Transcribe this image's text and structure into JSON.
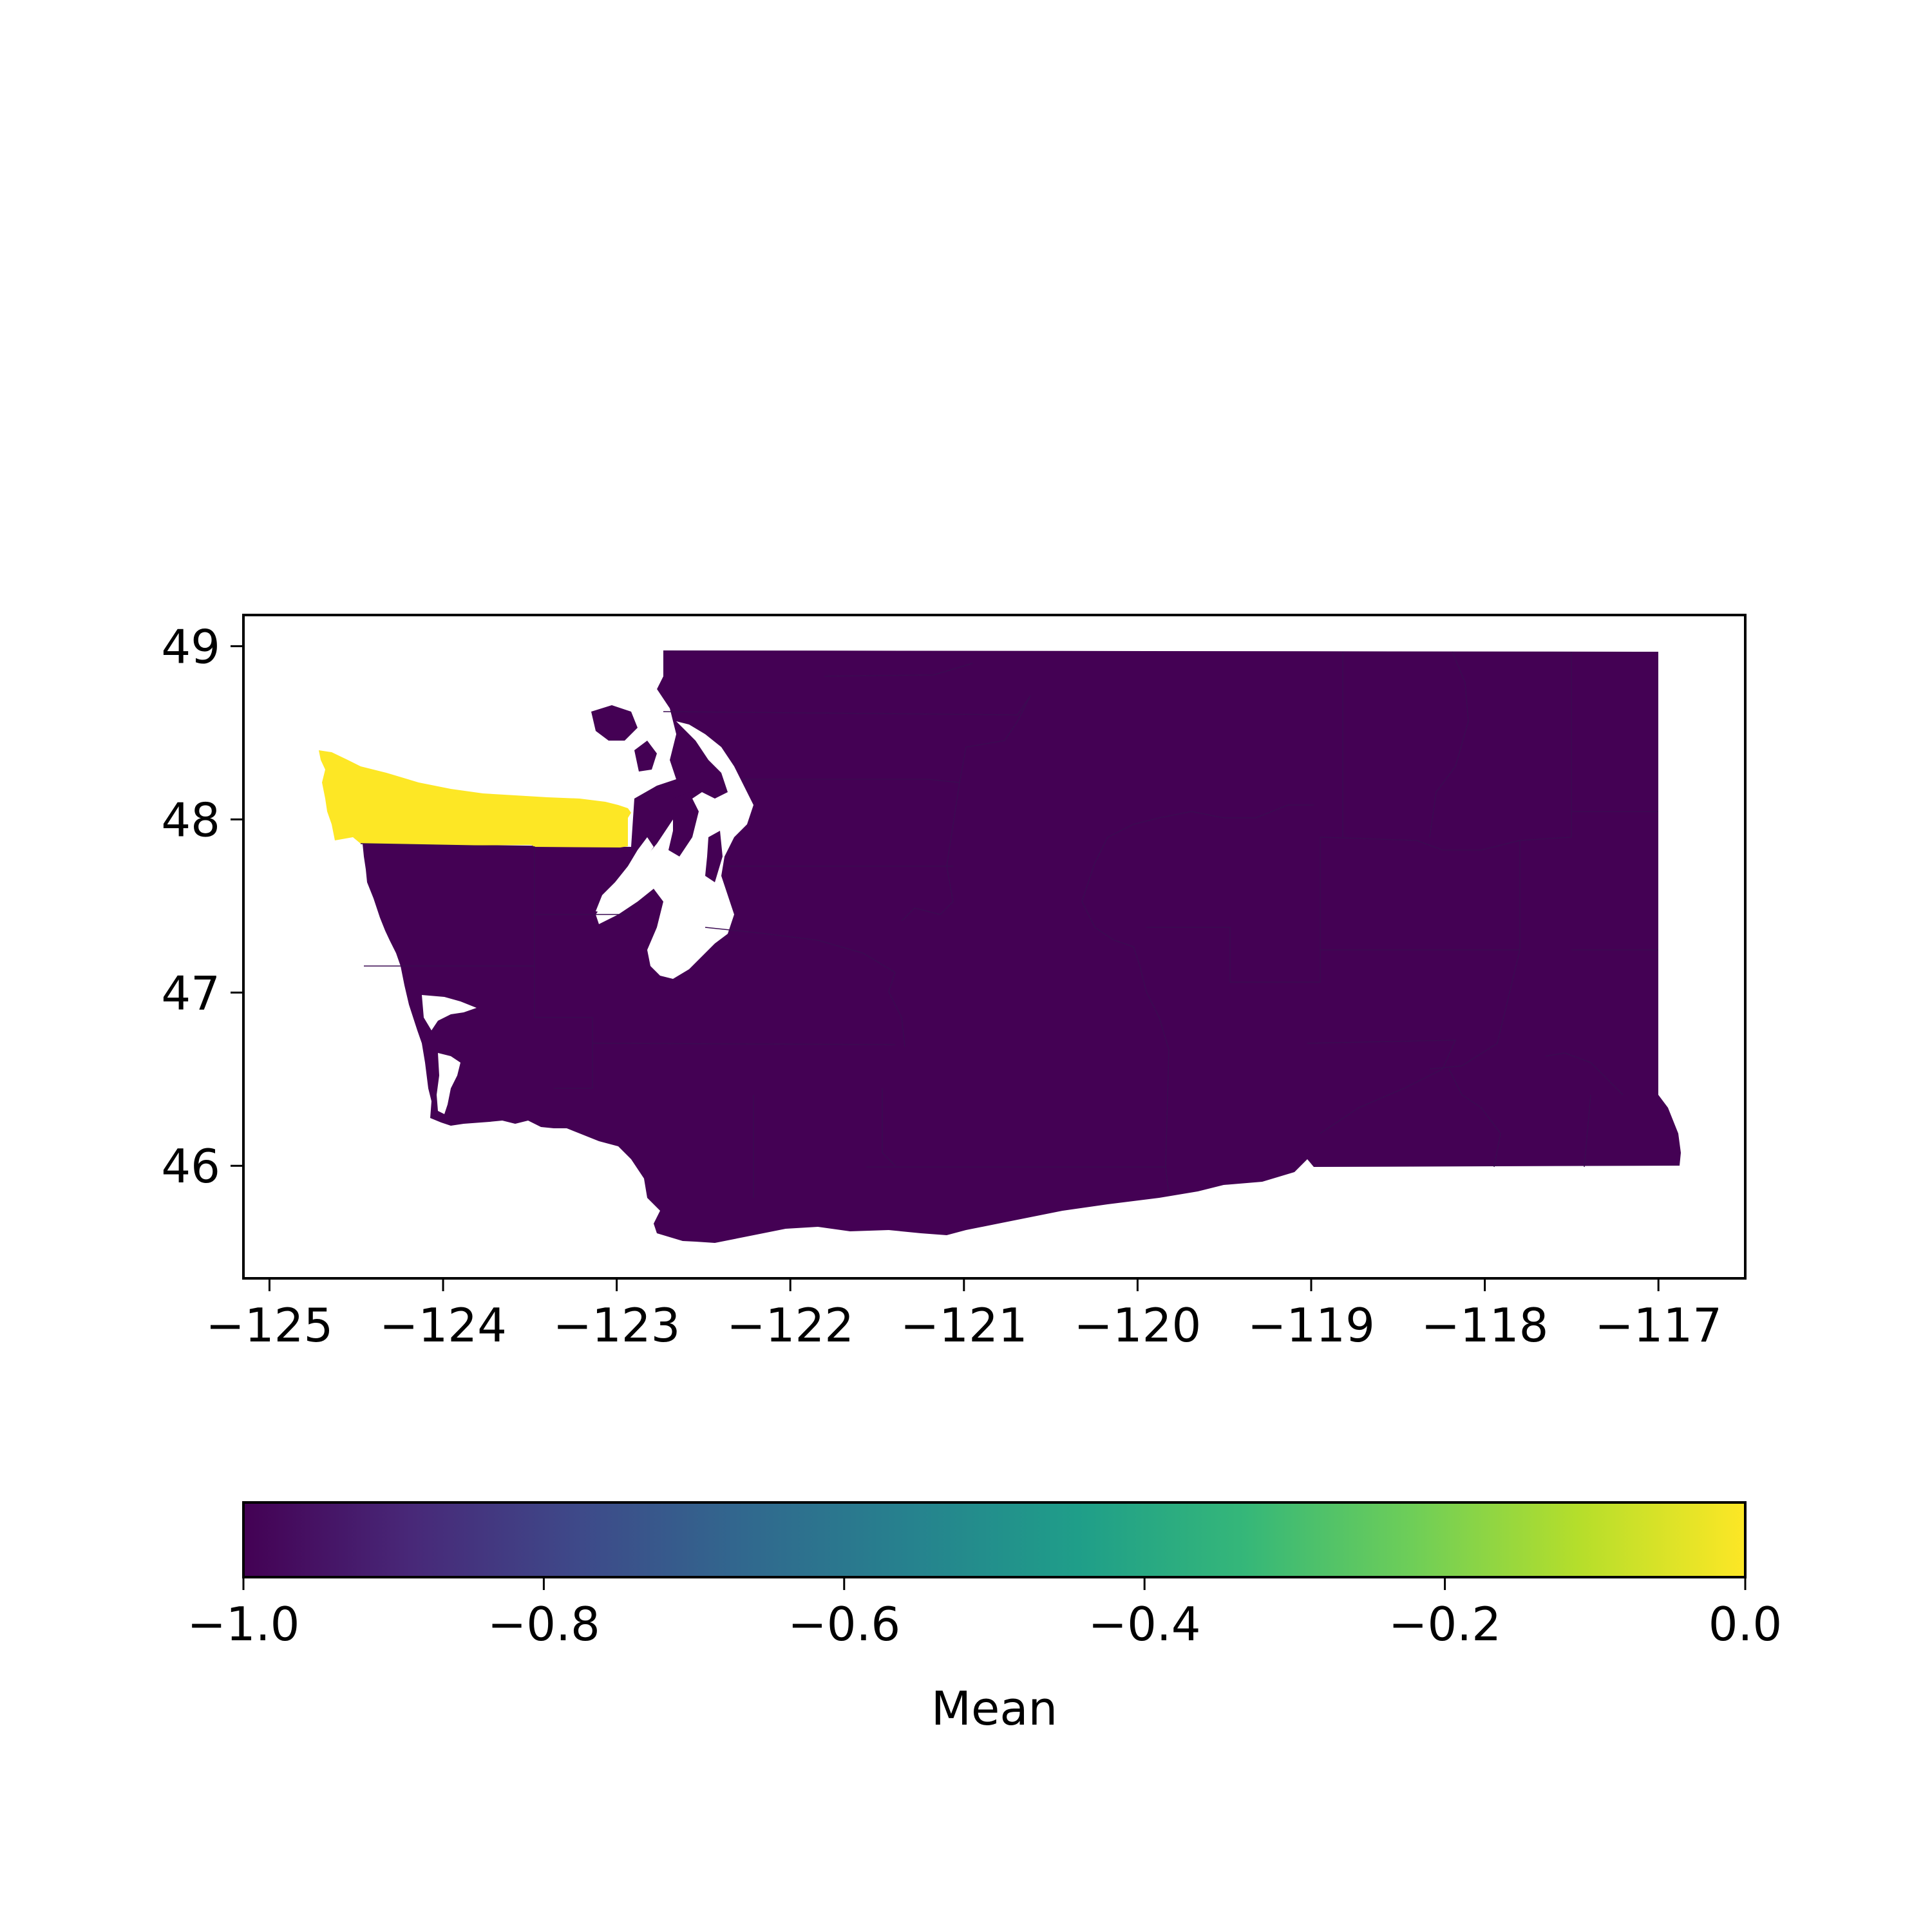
{
  "chart_data": {
    "type": "choropleth",
    "region": "Washington State counties",
    "xlim": [
      -125.15,
      -116.5
    ],
    "ylim": [
      45.35,
      49.18
    ],
    "x_ticks": [
      -125,
      -124,
      -123,
      -122,
      -121,
      -120,
      -119,
      -118,
      -117
    ],
    "x_tick_labels": [
      "−125",
      "−124",
      "−123",
      "−122",
      "−121",
      "−120",
      "−119",
      "−118",
      "−117"
    ],
    "y_ticks": [
      46,
      47,
      48,
      49
    ],
    "y_tick_labels": [
      "46",
      "47",
      "48",
      "49"
    ],
    "regions": [
      {
        "value": 0.0,
        "area": "Clallam County (Olympic Peninsula north coast)"
      },
      {
        "value": -1.0,
        "area": "all other counties"
      }
    ],
    "colorbar": {
      "label": "Mean",
      "range": [
        -1.0,
        0.0
      ],
      "colormap": "viridis",
      "ticks": [
        -1.0,
        -0.8,
        -0.6,
        -0.4,
        -0.2,
        0.0
      ],
      "tick_labels": [
        "−1.0",
        "−0.8",
        "−0.6",
        "−0.4",
        "−0.2",
        "0.0"
      ],
      "orientation": "horizontal",
      "placement": "bottom"
    },
    "colors": {
      "low": "#440154",
      "high": "#fde725",
      "stops": [
        "#440154",
        "#482878",
        "#3e4989",
        "#31688e",
        "#26828e",
        "#1f9e89",
        "#35b779",
        "#6ece58",
        "#b5de2b",
        "#fde725"
      ]
    }
  }
}
